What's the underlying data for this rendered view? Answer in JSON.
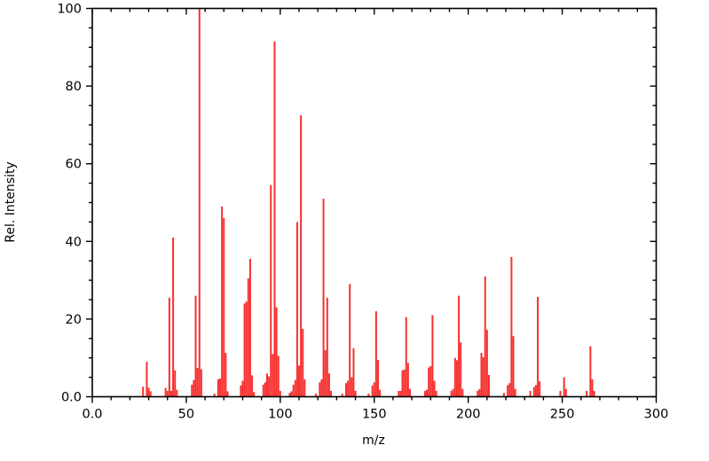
{
  "figure": {
    "background": "#ffffff",
    "kind": "mass-spectrum"
  },
  "chart_data": {
    "type": "bar",
    "title": "",
    "xlabel": "m/z",
    "ylabel": "Rel. Intensity",
    "xlim": [
      0,
      300
    ],
    "ylim": [
      0,
      100
    ],
    "grid": false,
    "legend": "none",
    "bar_color": "#f73030",
    "axis_color": "#000000",
    "xticks": {
      "values": [
        0,
        50,
        100,
        150,
        200,
        250,
        300
      ],
      "labels": [
        "0.0",
        "50",
        "100",
        "150",
        "200",
        "250",
        "300"
      ],
      "minor_step": 10
    },
    "yticks": {
      "values": [
        0,
        20,
        40,
        60,
        80,
        100
      ],
      "labels": [
        "0.0",
        "20",
        "40",
        "60",
        "80",
        "100"
      ],
      "minor_step": 5
    },
    "series": [
      {
        "name": "relative intensity",
        "x": [
          27,
          29,
          30,
          31,
          39,
          40,
          41,
          42,
          43,
          44,
          45,
          53,
          54,
          55,
          56,
          57,
          58,
          65,
          67,
          68,
          69,
          70,
          71,
          72,
          79,
          80,
          81,
          82,
          83,
          84,
          85,
          86,
          91,
          92,
          93,
          94,
          95,
          96,
          97,
          98,
          99,
          100,
          105,
          106,
          107,
          108,
          109,
          110,
          111,
          112,
          113,
          119,
          121,
          122,
          123,
          124,
          125,
          126,
          127,
          133,
          135,
          136,
          137,
          138,
          139,
          140,
          147,
          149,
          150,
          151,
          152,
          153,
          163,
          164,
          165,
          166,
          167,
          168,
          169,
          177,
          178,
          179,
          180,
          181,
          182,
          183,
          191,
          192,
          193,
          194,
          195,
          196,
          197,
          205,
          206,
          207,
          208,
          209,
          210,
          211,
          219,
          221,
          222,
          223,
          224,
          225,
          233,
          235,
          236,
          237,
          238,
          249,
          251,
          252,
          263,
          265,
          266,
          267
        ],
        "y": [
          2.6,
          9.0,
          2.3,
          1.4,
          2.3,
          1.5,
          25.5,
          1.5,
          41.0,
          6.8,
          1.8,
          3.1,
          4.3,
          26.0,
          7.4,
          100.0,
          7.1,
          0.8,
          4.5,
          4.7,
          49.0,
          46.0,
          11.3,
          1.4,
          2.9,
          4.1,
          24.0,
          24.5,
          30.5,
          35.5,
          5.5,
          1.2,
          3.1,
          3.7,
          6.0,
          5.2,
          54.5,
          11.0,
          91.5,
          23.0,
          10.5,
          1.5,
          1.0,
          1.4,
          3.1,
          4.3,
          45.0,
          8.0,
          72.5,
          17.5,
          4.5,
          0.8,
          3.7,
          4.5,
          51.0,
          12.0,
          25.5,
          6.0,
          1.5,
          0.8,
          3.5,
          4.1,
          29.0,
          5.0,
          12.5,
          1.5,
          0.8,
          2.9,
          3.7,
          22.0,
          9.5,
          1.8,
          1.5,
          1.5,
          6.8,
          7.0,
          20.5,
          8.7,
          2.0,
          1.5,
          1.8,
          7.5,
          7.9,
          21.0,
          4.1,
          1.5,
          1.5,
          2.0,
          10.0,
          9.4,
          26.0,
          14.0,
          2.0,
          1.5,
          2.0,
          11.3,
          10.2,
          31.0,
          17.2,
          5.6,
          1.0,
          3.0,
          3.5,
          36.0,
          15.6,
          2.0,
          1.5,
          2.5,
          3.0,
          25.7,
          4.0,
          1.5,
          5.0,
          2.0,
          1.5,
          13.0,
          4.5,
          1.5
        ]
      }
    ]
  }
}
